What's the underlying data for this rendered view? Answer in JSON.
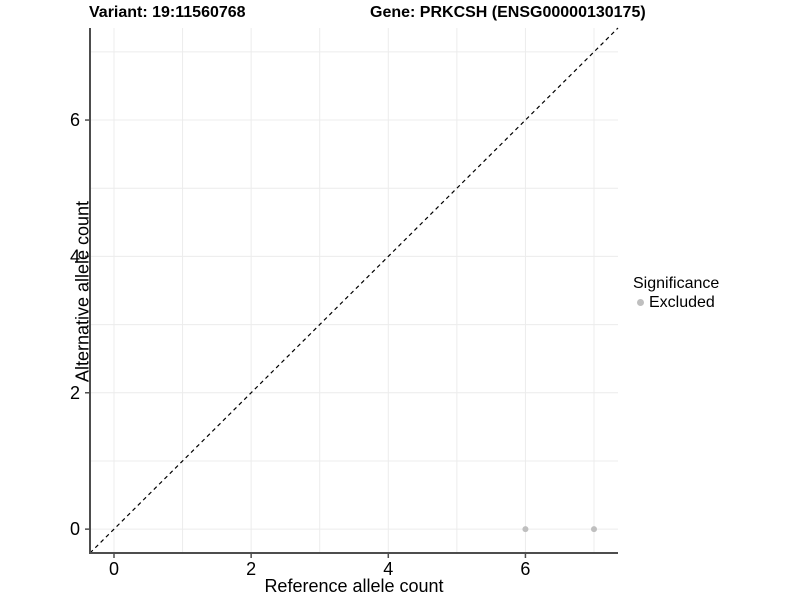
{
  "header": {
    "title_left": "Variant: 19:11560768",
    "title_right": "Gene: PRKCSH (ENSG00000130175)"
  },
  "colors": {
    "grid": "#ececec",
    "axis": "#4d4d4d",
    "tick_text": "#000000",
    "identity_line": "#000000",
    "excluded_point": "#bfbfbf",
    "background": "#ffffff"
  },
  "chart_data": {
    "type": "scatter",
    "title_left": "Variant: 19:11560768",
    "title_right": "Gene: PRKCSH (ENSG00000130175)",
    "xlabel": "Reference allele count",
    "ylabel": "Alternative allele count",
    "xlim": [
      -0.35,
      7.35
    ],
    "ylim": [
      -0.35,
      7.35
    ],
    "x_ticks": [
      0,
      2,
      4,
      6
    ],
    "y_ticks": [
      0,
      2,
      4,
      6
    ],
    "grid_start": 0,
    "grid_end": 7,
    "grid_interval": 1,
    "grid_on": true,
    "identity_line": {
      "style": "dashed",
      "color": "#000000",
      "from": -0.35,
      "to": 7.35
    },
    "series": [
      {
        "name": "Excluded",
        "color": "#bfbfbf",
        "points": [
          {
            "x": 6,
            "y": 0
          },
          {
            "x": 7,
            "y": 0
          }
        ]
      }
    ],
    "legend": {
      "title": "Significance",
      "position": "right",
      "items": [
        {
          "label": "Excluded",
          "color": "#bfbfbf"
        }
      ]
    }
  }
}
